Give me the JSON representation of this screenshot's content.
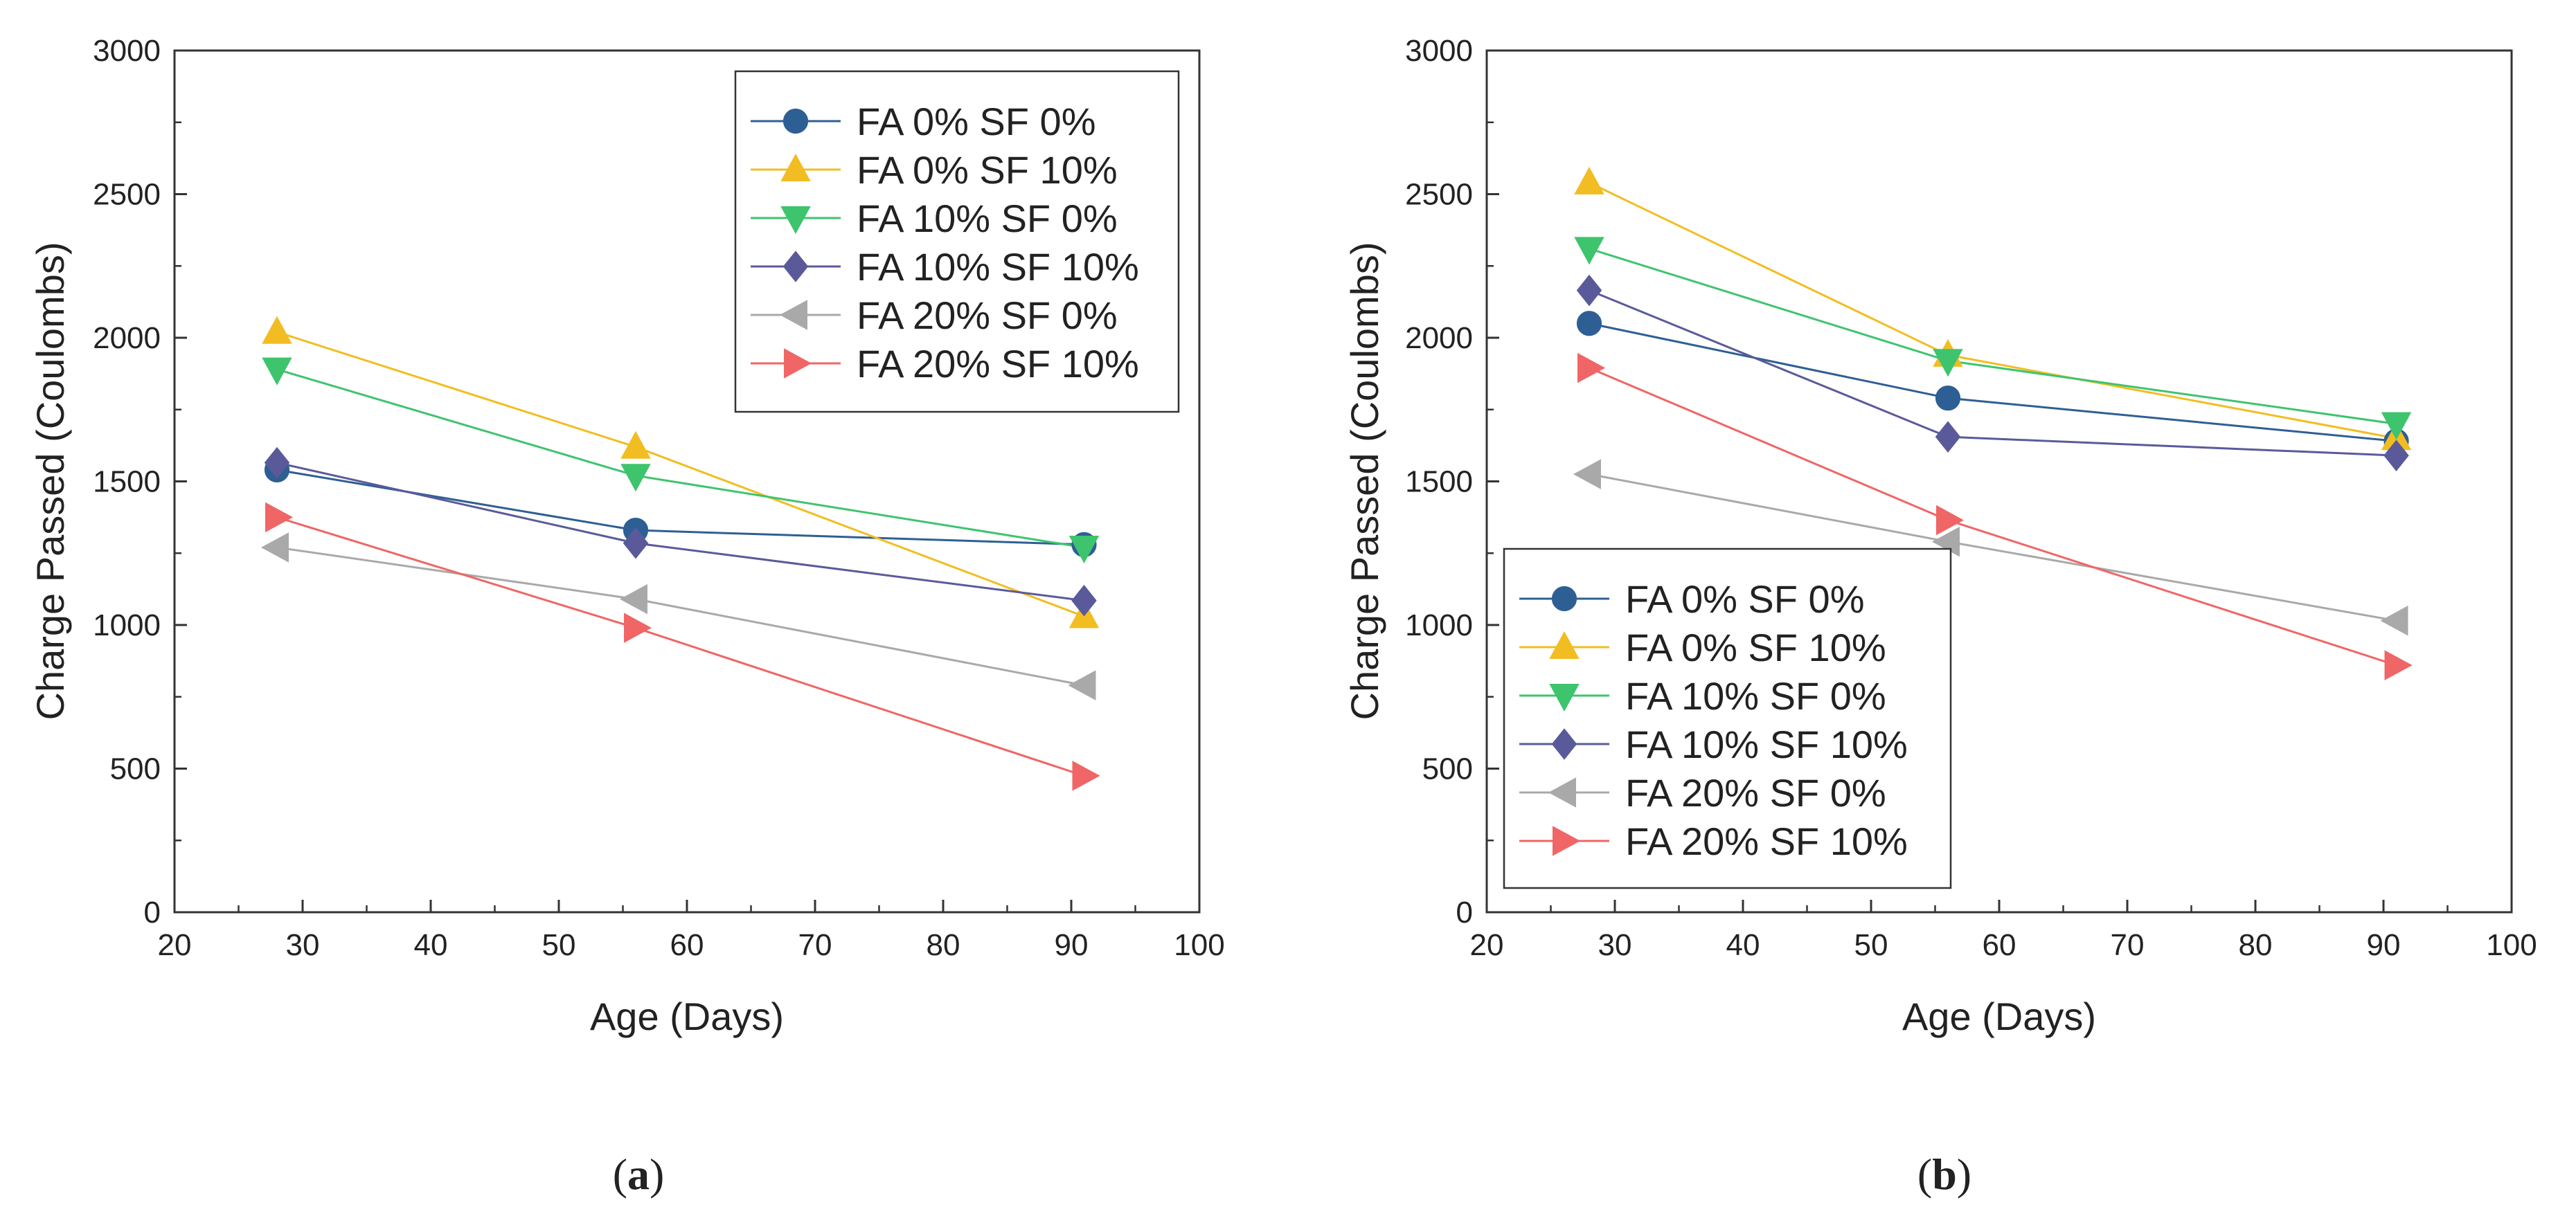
{
  "chart_data": [
    {
      "type": "line",
      "panel_label_prefix": "(",
      "panel_label_letter": "a",
      "panel_label_suffix": ")",
      "xlabel": "Age (Days)",
      "ylabel": "Charge Passed (Coulombs)",
      "xlim": [
        20,
        100
      ],
      "ylim": [
        0,
        3000
      ],
      "xticks": [
        20,
        30,
        40,
        50,
        60,
        70,
        80,
        90,
        100
      ],
      "yticks": [
        0,
        500,
        1000,
        1500,
        2000,
        2500,
        3000
      ],
      "grid": false,
      "legend_position": "top-right",
      "x": [
        28,
        56,
        91
      ],
      "series": [
        {
          "name": "FA 0% SF 0%",
          "color": "#2e5f94",
          "marker": "circle",
          "values": [
            1540,
            1330,
            1280
          ]
        },
        {
          "name": "FA 0% SF 10%",
          "color": "#f2bd22",
          "marker": "triangle-up",
          "values": [
            2020,
            1620,
            1030
          ]
        },
        {
          "name": "FA 10% SF 0%",
          "color": "#3ec46d",
          "marker": "triangle-down",
          "values": [
            1890,
            1520,
            1270
          ]
        },
        {
          "name": "FA 10% SF 10%",
          "color": "#5a5a9a",
          "marker": "diamond",
          "values": [
            1565,
            1285,
            1085
          ]
        },
        {
          "name": "FA 20% SF 0%",
          "color": "#a9a9a9",
          "marker": "triangle-left",
          "values": [
            1270,
            1090,
            790
          ]
        },
        {
          "name": "FA 20% SF 10%",
          "color": "#f06565",
          "marker": "triangle-right",
          "values": [
            1375,
            990,
            475
          ]
        }
      ]
    },
    {
      "type": "line",
      "panel_label_prefix": "(",
      "panel_label_letter": "b",
      "panel_label_suffix": ")",
      "xlabel": "Age (Days)",
      "ylabel": "Charge Passed (Coulombs)",
      "xlim": [
        20,
        100
      ],
      "ylim": [
        0,
        3000
      ],
      "xticks": [
        20,
        30,
        40,
        50,
        60,
        70,
        80,
        90,
        100
      ],
      "yticks": [
        0,
        500,
        1000,
        1500,
        2000,
        2500,
        3000
      ],
      "grid": false,
      "legend_position": "bottom-left",
      "x": [
        28,
        56,
        91
      ],
      "series": [
        {
          "name": "FA 0% SF 0%",
          "color": "#2e5f94",
          "marker": "circle",
          "values": [
            2050,
            1790,
            1640
          ]
        },
        {
          "name": "FA 0% SF 10%",
          "color": "#f2bd22",
          "marker": "triangle-up",
          "values": [
            2540,
            1940,
            1650
          ]
        },
        {
          "name": "FA 10% SF 0%",
          "color": "#3ec46d",
          "marker": "triangle-down",
          "values": [
            2310,
            1920,
            1700
          ]
        },
        {
          "name": "FA 10% SF 10%",
          "color": "#5a5a9a",
          "marker": "diamond",
          "values": [
            2165,
            1655,
            1590
          ]
        },
        {
          "name": "FA 20% SF 0%",
          "color": "#a9a9a9",
          "marker": "triangle-left",
          "values": [
            1525,
            1290,
            1015
          ]
        },
        {
          "name": "FA 20% SF 10%",
          "color": "#f06565",
          "marker": "triangle-right",
          "values": [
            1895,
            1365,
            860
          ]
        }
      ]
    }
  ]
}
